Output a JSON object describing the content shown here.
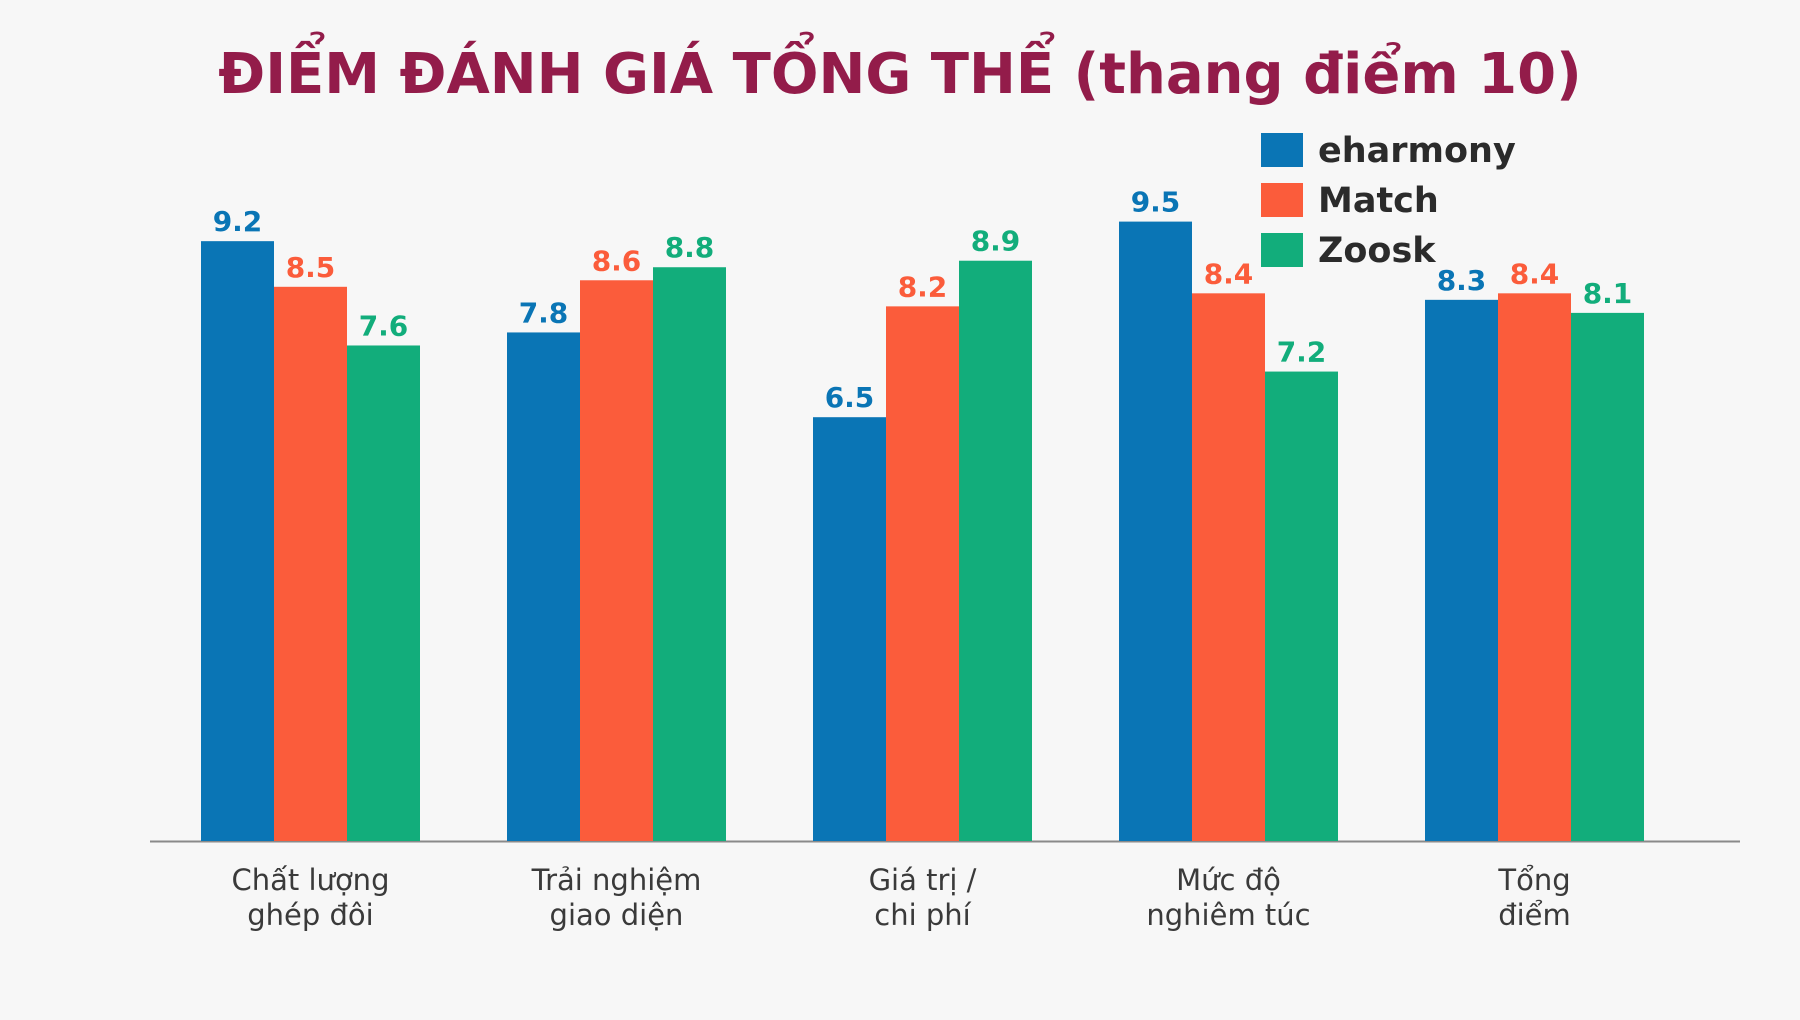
{
  "chart_data": {
    "type": "bar",
    "title": "ĐIỂM ĐÁNH GIÁ TỔNG THỂ (thang điểm 10)",
    "categories": [
      [
        "Chất lượng",
        "ghép đôi"
      ],
      [
        "Trải nghiệm",
        "giao diện"
      ],
      [
        "Giá trị /",
        "chi phí"
      ],
      [
        "Mức độ",
        "nghiêm túc"
      ],
      [
        "Tổng",
        "điểm"
      ]
    ],
    "series": [
      {
        "name": "eharmony",
        "color": "#0a75b5",
        "values": [
          9.2,
          7.8,
          6.5,
          9.5,
          8.3
        ],
        "labels": [
          "9.2",
          "7.8",
          "6.5",
          "9.5",
          "8.3"
        ]
      },
      {
        "name": "Match",
        "color": "#fb5c3b",
        "values": [
          8.5,
          8.6,
          8.2,
          8.4,
          8.4
        ],
        "labels": [
          "8.5",
          "8.6",
          "8.2",
          "8.4",
          "8.4"
        ]
      },
      {
        "name": "Zoosk",
        "color": "#12ad7b",
        "values": [
          7.6,
          8.8,
          8.9,
          7.2,
          8.1
        ],
        "labels": [
          "7.6",
          "8.8",
          "8.9",
          "7.2",
          "8.1"
        ]
      }
    ],
    "ylim": [
      0,
      10
    ],
    "grid": false,
    "legend_position": "top-right",
    "colors": {
      "title": "#931c4a",
      "axis": "#8a8a8a",
      "background": "#f7f7f7"
    }
  }
}
